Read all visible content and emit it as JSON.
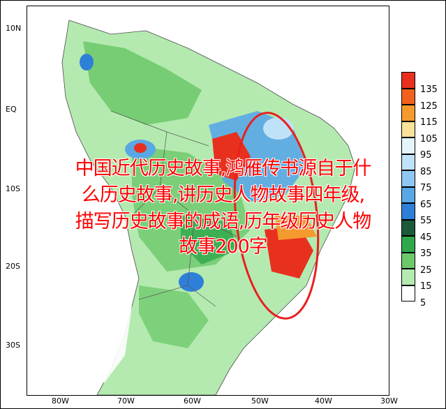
{
  "map": {
    "lat_labels": [
      "10N",
      "EQ",
      "10S",
      "20S",
      "30S"
    ],
    "lon_labels": [
      "80W",
      "70W",
      "60W",
      "50W",
      "40W",
      "30W"
    ]
  },
  "legend": {
    "labels": [
      "135",
      "125",
      "115",
      "105",
      "95",
      "85",
      "75",
      "65",
      "55",
      "45",
      "35",
      "25",
      "15",
      "5"
    ],
    "colors": [
      "#e8301e",
      "#f2601e",
      "#f49a2e",
      "#fbe29a",
      "#e4f4fb",
      "#c0e2f8",
      "#8ec7f2",
      "#5aa7e5",
      "#2e7fd8",
      "#1c5a3a",
      "#2ea84a",
      "#6cc86a",
      "#b4eab0",
      "#ffffff"
    ]
  },
  "annotation": {
    "shape": "red-ellipse"
  },
  "overlay": {
    "line1": "中国近代历史故事,鸿雁传书源自于什",
    "line2": "么历史故事,讲历史人物故事四年级,",
    "line3": "描写历史故事的成语,历年级历史人物",
    "line4": "故事200字"
  }
}
